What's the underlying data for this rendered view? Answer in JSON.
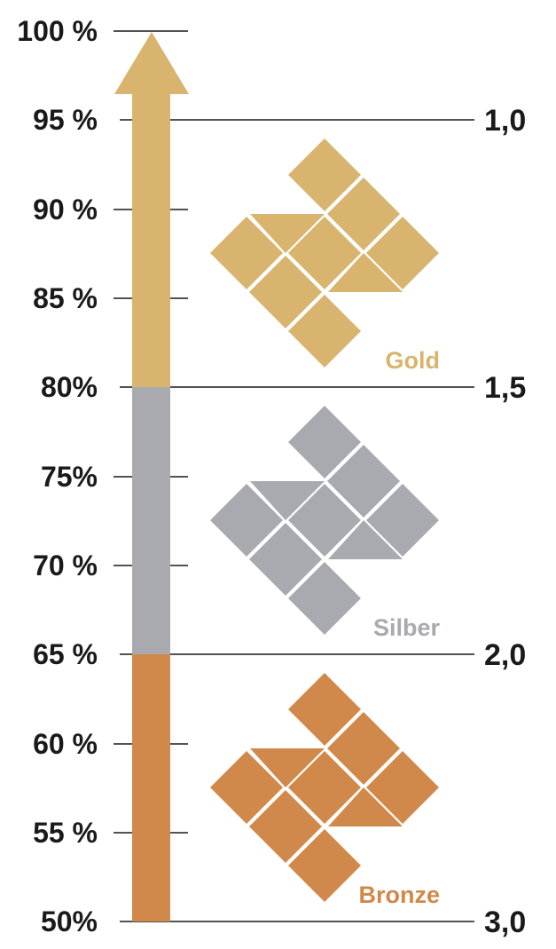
{
  "scale": {
    "percent_labels": [
      "100 %",
      "95 %",
      "90 %",
      "85 %",
      "80%",
      "75%",
      "70 %",
      "65 %",
      "60 %",
      "55 %",
      "50%"
    ],
    "grade_labels": [
      "1,0",
      "1,5",
      "2,0",
      "3,0"
    ]
  },
  "tiers": [
    {
      "name": "Gold",
      "color": "#d8b46e",
      "from_percent": 80,
      "to_percent": 100
    },
    {
      "name": "Silber",
      "color": "#a9aaaf",
      "from_percent": 65,
      "to_percent": 80
    },
    {
      "name": "Bronze",
      "color": "#d0894a",
      "from_percent": 50,
      "to_percent": 65
    }
  ]
}
